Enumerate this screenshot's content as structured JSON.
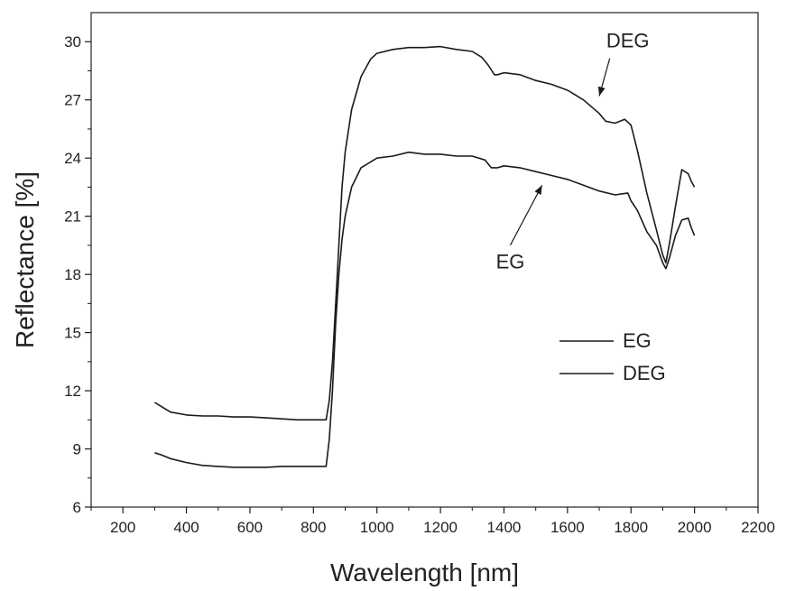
{
  "chart_data": {
    "type": "line",
    "title": "",
    "xlabel": "Wavelength [nm]",
    "ylabel": "Reflectance [%]",
    "xlim": [
      100,
      2200
    ],
    "ylim": [
      6,
      31.5
    ],
    "xticks": [
      200,
      400,
      600,
      800,
      1000,
      1200,
      1400,
      1600,
      1800,
      2000,
      2200
    ],
    "yticks": [
      6,
      9,
      12,
      15,
      18,
      21,
      24,
      27,
      30
    ],
    "grid": false,
    "legend_position": "center-right",
    "line_color": "#1a1a1a",
    "series": [
      {
        "name": "EG",
        "x": [
          300,
          320,
          350,
          400,
          450,
          500,
          550,
          600,
          650,
          700,
          750,
          800,
          840,
          850,
          860,
          870,
          880,
          890,
          900,
          920,
          950,
          1000,
          1050,
          1100,
          1150,
          1200,
          1250,
          1300,
          1340,
          1360,
          1380,
          1400,
          1450,
          1500,
          1550,
          1600,
          1650,
          1700,
          1750,
          1790,
          1800,
          1820,
          1850,
          1880,
          1900,
          1910,
          1920,
          1940,
          1960,
          1980,
          1990,
          2000
        ],
        "y": [
          8.8,
          8.7,
          8.5,
          8.3,
          8.15,
          8.1,
          8.05,
          8.05,
          8.05,
          8.1,
          8.1,
          8.1,
          8.1,
          9.5,
          12,
          15.5,
          18,
          19.8,
          21.0,
          22.5,
          23.5,
          24.0,
          24.1,
          24.3,
          24.2,
          24.2,
          24.1,
          24.1,
          23.9,
          23.5,
          23.5,
          23.6,
          23.5,
          23.3,
          23.1,
          22.9,
          22.6,
          22.3,
          22.1,
          22.2,
          21.8,
          21.3,
          20.2,
          19.5,
          18.6,
          18.3,
          18.8,
          20.0,
          20.8,
          20.9,
          20.4,
          20.0
        ]
      },
      {
        "name": "DEG",
        "x": [
          300,
          320,
          350,
          400,
          450,
          500,
          550,
          600,
          650,
          700,
          750,
          800,
          840,
          850,
          860,
          870,
          880,
          890,
          900,
          920,
          950,
          980,
          1000,
          1050,
          1100,
          1150,
          1200,
          1250,
          1300,
          1330,
          1350,
          1370,
          1380,
          1400,
          1450,
          1500,
          1550,
          1600,
          1650,
          1700,
          1720,
          1750,
          1780,
          1800,
          1820,
          1850,
          1880,
          1900,
          1910,
          1920,
          1940,
          1960,
          1980,
          1990,
          2000
        ],
        "y": [
          11.4,
          11.2,
          10.9,
          10.75,
          10.7,
          10.7,
          10.65,
          10.65,
          10.6,
          10.55,
          10.5,
          10.5,
          10.5,
          11.5,
          13.5,
          16.5,
          19.5,
          22.5,
          24.3,
          26.5,
          28.2,
          29.1,
          29.4,
          29.6,
          29.7,
          29.7,
          29.75,
          29.6,
          29.5,
          29.2,
          28.8,
          28.3,
          28.3,
          28.4,
          28.3,
          28.0,
          27.8,
          27.5,
          27.0,
          26.3,
          25.9,
          25.8,
          26.0,
          25.7,
          24.4,
          22.2,
          20.3,
          19.0,
          18.6,
          19.5,
          21.5,
          23.4,
          23.2,
          22.8,
          22.5
        ]
      }
    ],
    "annotations": [
      {
        "text": "DEG",
        "x": 1790,
        "y": 29.7,
        "arrow_to": [
          1700,
          27.2
        ]
      },
      {
        "text": "EG",
        "x": 1420,
        "y": 18.3,
        "arrow_to": [
          1520,
          22.6
        ]
      }
    ]
  }
}
